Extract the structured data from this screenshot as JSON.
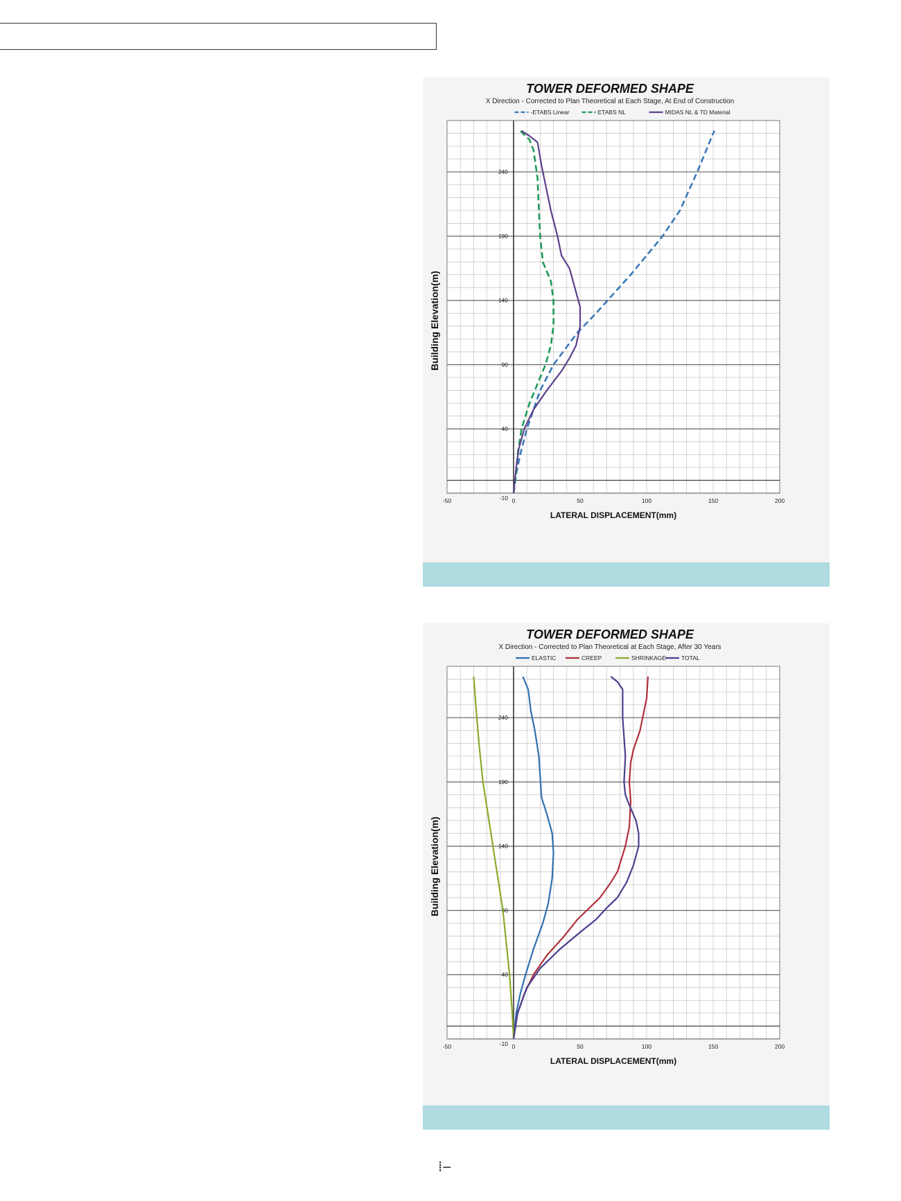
{
  "footer_mark": "⁞‒",
  "chart_data": [
    {
      "type": "line",
      "title": "TOWER DEFORMED SHAPE",
      "subtitle": "X Direction - Corrected to Plan Theoretical at Each Stage, At End of Construction",
      "xlabel": "LATERAL DISPLACEMENT(mm)",
      "ylabel": "Building Elevation(m)",
      "xlim": [
        -50,
        200
      ],
      "ylim": [
        -10,
        280
      ],
      "x_ticks": [
        "-50",
        "0",
        "50",
        "100",
        "150",
        "200"
      ],
      "y_ticks": [
        "-10",
        "40",
        "90",
        "140",
        "190",
        "240"
      ],
      "grid": true,
      "legend_position": "top",
      "series": [
        {
          "name": "ETABS Linear",
          "legend_label": "-ETABS Linear",
          "color": "#3a78b8",
          "dash": "dashed",
          "points": [
            [
              0,
              -10
            ],
            [
              2,
              5
            ],
            [
              5,
              20
            ],
            [
              10,
              40
            ],
            [
              20,
              70
            ],
            [
              30,
              90
            ],
            [
              48,
              115
            ],
            [
              62,
              130
            ],
            [
              75,
              145
            ],
            [
              88,
              160
            ],
            [
              100,
              175
            ],
            [
              112,
              190
            ],
            [
              125,
              210
            ],
            [
              138,
              240
            ],
            [
              150,
              270
            ],
            [
              151,
              272
            ]
          ]
        },
        {
          "name": "ETABS NL",
          "legend_label": "ETABS NL",
          "color": "#1e9a5a",
          "dash": "dashed",
          "points": [
            [
              0,
              -10
            ],
            [
              2,
              5
            ],
            [
              3,
              20
            ],
            [
              6,
              40
            ],
            [
              12,
              60
            ],
            [
              18,
              75
            ],
            [
              24,
              90
            ],
            [
              28,
              105
            ],
            [
              30,
              120
            ],
            [
              30,
              140
            ],
            [
              28,
              155
            ],
            [
              22,
              170
            ],
            [
              20,
              190
            ],
            [
              19,
              210
            ],
            [
              18,
              235
            ],
            [
              15,
              257
            ],
            [
              12,
              265
            ],
            [
              5,
              272
            ]
          ]
        },
        {
          "name": "MIDAS NL & TD Material",
          "legend_label": "MIDAS NL & TD Material",
          "color": "#5b3f8c",
          "dash": "solid",
          "points": [
            [
              0,
              -10
            ],
            [
              2,
              10
            ],
            [
              4,
              25
            ],
            [
              8,
              40
            ],
            [
              15,
              55
            ],
            [
              25,
              70
            ],
            [
              36,
              85
            ],
            [
              42,
              95
            ],
            [
              47,
              105
            ],
            [
              50,
              120
            ],
            [
              50,
              135
            ],
            [
              46,
              150
            ],
            [
              42,
              165
            ],
            [
              36,
              175
            ],
            [
              33,
              190
            ],
            [
              28,
              210
            ],
            [
              24,
              230
            ],
            [
              21,
              245
            ],
            [
              18,
              263
            ],
            [
              12,
              268
            ],
            [
              6,
              272
            ]
          ]
        }
      ]
    },
    {
      "type": "line",
      "title": "TOWER DEFORMED SHAPE",
      "subtitle": "X Direction - Corrected to Plan Theoretical at Each Stage, After 30 Years",
      "xlabel": "LATERAL DISPLACEMENT(mm)",
      "ylabel": "Building Elevation(m)",
      "xlim": [
        -50,
        200
      ],
      "ylim": [
        -10,
        280
      ],
      "x_ticks": [
        "-50",
        "0",
        "50",
        "100",
        "150",
        "200"
      ],
      "y_ticks": [
        "-10",
        "40",
        "90",
        "140",
        "190",
        "240"
      ],
      "grid": true,
      "legend_position": "top",
      "series": [
        {
          "name": "ELASTIC",
          "legend_label": "ELASTIC",
          "color": "#2e6fb0",
          "dash": "solid",
          "points": [
            [
              0,
              -10
            ],
            [
              2,
              10
            ],
            [
              5,
              25
            ],
            [
              9,
              40
            ],
            [
              15,
              60
            ],
            [
              22,
              80
            ],
            [
              26,
              95
            ],
            [
              29,
              115
            ],
            [
              30,
              135
            ],
            [
              29,
              150
            ],
            [
              25,
              165
            ],
            [
              21,
              178
            ],
            [
              19,
              210
            ],
            [
              16,
              230
            ],
            [
              13,
              245
            ],
            [
              11,
              262
            ],
            [
              7,
              272
            ]
          ]
        },
        {
          "name": "CREEP",
          "legend_label": "CREEP",
          "color": "#b0303a",
          "dash": "solid",
          "points": [
            [
              0,
              -10
            ],
            [
              3,
              10
            ],
            [
              8,
              25
            ],
            [
              15,
              40
            ],
            [
              25,
              55
            ],
            [
              38,
              70
            ],
            [
              48,
              83
            ],
            [
              55,
              90
            ],
            [
              65,
              100
            ],
            [
              72,
              110
            ],
            [
              78,
              120
            ],
            [
              84,
              140
            ],
            [
              87,
              155
            ],
            [
              88,
              175
            ],
            [
              87,
              190
            ],
            [
              88,
              205
            ],
            [
              90,
              215
            ],
            [
              95,
              230
            ],
            [
              100,
              255
            ],
            [
              101,
              272
            ]
          ]
        },
        {
          "name": "SHRINKAGE",
          "legend_label": "SHRINKAGE",
          "color": "#8aaa2a",
          "dash": "solid",
          "points": [
            [
              0,
              -10
            ],
            [
              -1,
              10
            ],
            [
              -3,
              40
            ],
            [
              -6,
              70
            ],
            [
              -8,
              90
            ],
            [
              -11,
              110
            ],
            [
              -14,
              130
            ],
            [
              -17,
              150
            ],
            [
              -20,
              170
            ],
            [
              -23,
              190
            ],
            [
              -26,
              220
            ],
            [
              -28,
              245
            ],
            [
              -30,
              272
            ]
          ]
        },
        {
          "name": "TOTAL",
          "legend_label": "TOTAL",
          "color": "#4a3e8e",
          "dash": "solid",
          "points": [
            [
              0,
              -10
            ],
            [
              3,
              10
            ],
            [
              10,
              30
            ],
            [
              20,
              45
            ],
            [
              35,
              60
            ],
            [
              50,
              73
            ],
            [
              62,
              83
            ],
            [
              70,
              92
            ],
            [
              78,
              100
            ],
            [
              85,
              112
            ],
            [
              90,
              125
            ],
            [
              94,
              140
            ],
            [
              94,
              150
            ],
            [
              92,
              160
            ],
            [
              87,
              172
            ],
            [
              84,
              180
            ],
            [
              83,
              190
            ],
            [
              84,
              210
            ],
            [
              82,
              240
            ],
            [
              82,
              262
            ],
            [
              78,
              268
            ],
            [
              73,
              272
            ]
          ]
        }
      ]
    }
  ]
}
